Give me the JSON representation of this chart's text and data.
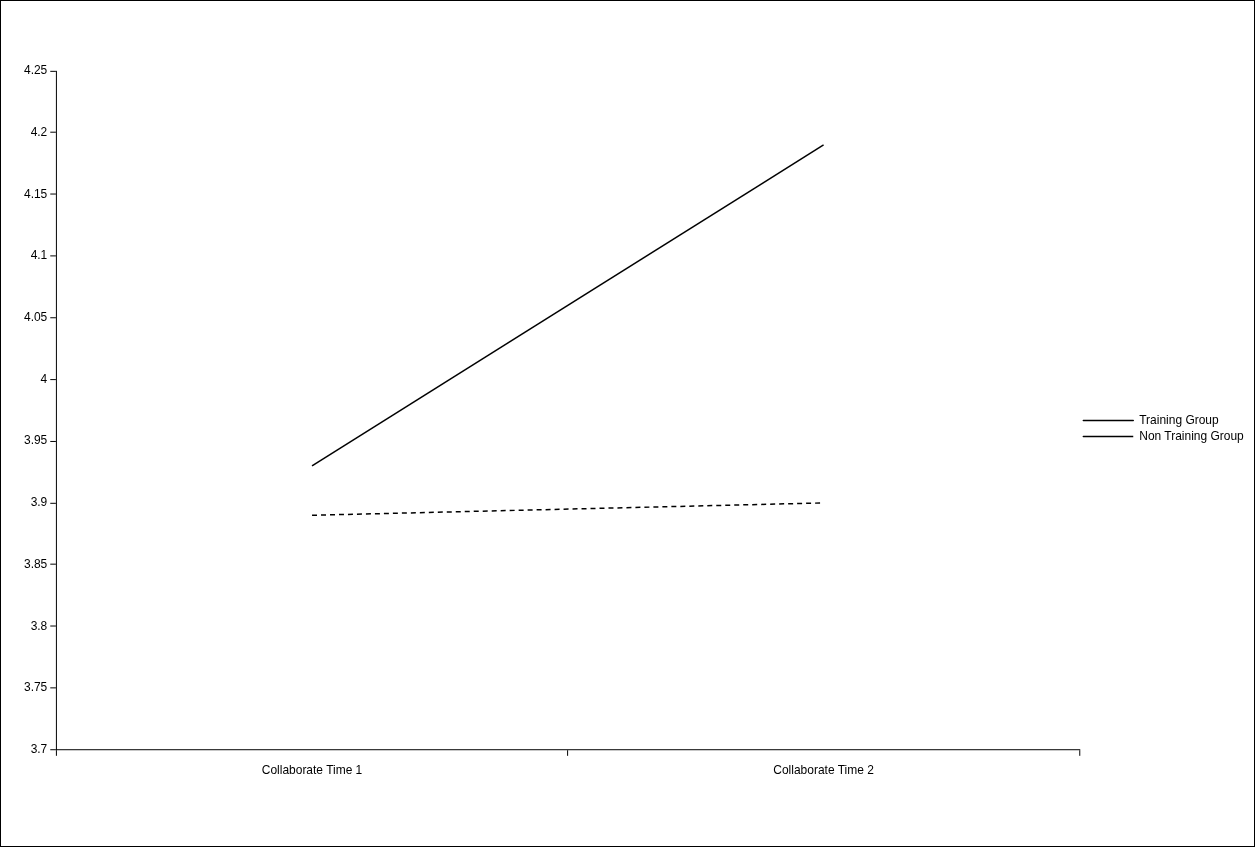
{
  "chart_data": {
    "type": "line",
    "categories": [
      "Collaborate Time 1",
      "Collaborate Time 2"
    ],
    "series": [
      {
        "name": "Training Group",
        "color": "#000000",
        "values": [
          3.93,
          4.19
        ],
        "line_style": "solid"
      },
      {
        "name": "Non Training Group",
        "color": "#000000",
        "values": [
          3.89,
          3.9
        ],
        "line_style": "dashed"
      }
    ],
    "ylim": [
      3.7,
      4.25
    ],
    "yticks": [
      3.7,
      3.75,
      3.8,
      3.85,
      3.9,
      3.95,
      4,
      4.05,
      4.1,
      4.15,
      4.2,
      4.25
    ],
    "grid": false,
    "legend": "right",
    "marker": "none"
  }
}
